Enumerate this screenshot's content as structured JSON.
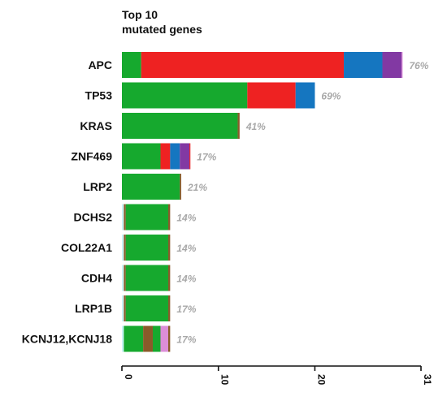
{
  "chart_data": {
    "type": "bar",
    "orientation": "horizontal",
    "stacked": true,
    "title_lines": [
      "Top 10",
      "mutated genes"
    ],
    "xlabel": "",
    "ylabel": "",
    "xlim": [
      0,
      31
    ],
    "x_ticks": [
      0,
      10,
      20,
      31
    ],
    "grid": false,
    "legend": "none",
    "colors": {
      "green": "#16a92e",
      "red": "#ee2222",
      "blue": "#1576c0",
      "purple": "#8239a3",
      "brown": "#8a5a2a",
      "cyan": "#c7f3f5",
      "pink": "#dc8ed8"
    },
    "genes": [
      {
        "name": "APC",
        "percent": "76%",
        "segments": [
          {
            "color": "green",
            "value": 2
          },
          {
            "color": "red",
            "value": 21
          },
          {
            "color": "blue",
            "value": 4
          },
          {
            "color": "purple",
            "value": 2
          },
          {
            "color": "pink",
            "value": 0.1
          }
        ]
      },
      {
        "name": "TP53",
        "percent": "69%",
        "segments": [
          {
            "color": "green",
            "value": 13
          },
          {
            "color": "red",
            "value": 5
          },
          {
            "color": "blue",
            "value": 2
          }
        ]
      },
      {
        "name": "KRAS",
        "percent": "41%",
        "segments": [
          {
            "color": "green",
            "value": 12
          },
          {
            "color": "brown",
            "value": 0.2
          }
        ]
      },
      {
        "name": "ZNF469",
        "percent": "17%",
        "segments": [
          {
            "color": "green",
            "value": 4
          },
          {
            "color": "red",
            "value": 1
          },
          {
            "color": "blue",
            "value": 1
          },
          {
            "color": "purple",
            "value": 1
          },
          {
            "color": "red",
            "value": 0.1
          }
        ]
      },
      {
        "name": "LRP2",
        "percent": "21%",
        "segments": [
          {
            "color": "green",
            "value": 6
          },
          {
            "color": "brown",
            "value": 0.15
          }
        ]
      },
      {
        "name": "DCHS2",
        "percent": "14%",
        "segments": [
          {
            "color": "cyan",
            "value": 0.2
          },
          {
            "color": "brown",
            "value": 0.2
          },
          {
            "color": "green",
            "value": 4.4
          },
          {
            "color": "brown",
            "value": 0.2
          }
        ]
      },
      {
        "name": "COL22A1",
        "percent": "14%",
        "segments": [
          {
            "color": "cyan",
            "value": 0.2
          },
          {
            "color": "brown",
            "value": 0.2
          },
          {
            "color": "green",
            "value": 4.4
          },
          {
            "color": "brown",
            "value": 0.2
          }
        ]
      },
      {
        "name": "CDH4",
        "percent": "14%",
        "segments": [
          {
            "color": "cyan",
            "value": 0.2
          },
          {
            "color": "brown",
            "value": 0.2
          },
          {
            "color": "green",
            "value": 4.4
          },
          {
            "color": "brown",
            "value": 0.2
          }
        ]
      },
      {
        "name": "LRP1B",
        "percent": "17%",
        "segments": [
          {
            "color": "cyan",
            "value": 0.2
          },
          {
            "color": "brown",
            "value": 0.2
          },
          {
            "color": "green",
            "value": 4.4
          },
          {
            "color": "brown",
            "value": 0.2
          }
        ]
      },
      {
        "name": "KCNJ12,KCNJ18",
        "percent": "17%",
        "segments": [
          {
            "color": "cyan",
            "value": 0.2
          },
          {
            "color": "green",
            "value": 2.0
          },
          {
            "color": "brown",
            "value": 1.0
          },
          {
            "color": "green",
            "value": 0.8
          },
          {
            "color": "pink",
            "value": 0.8
          },
          {
            "color": "brown",
            "value": 0.2
          }
        ]
      }
    ]
  }
}
